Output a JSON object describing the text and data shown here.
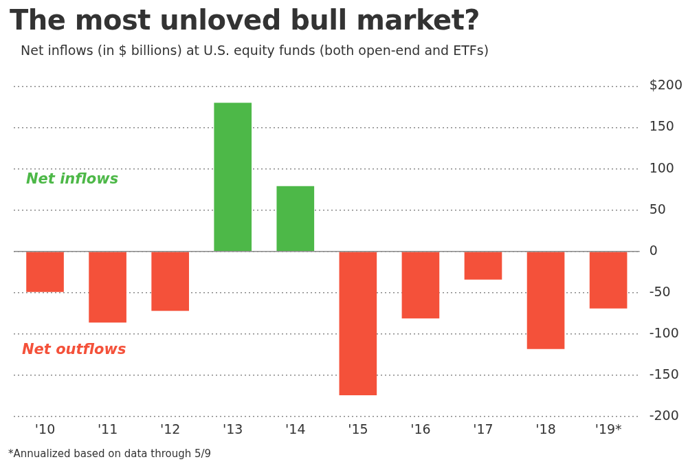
{
  "chart_data": {
    "type": "bar",
    "title": "The most unloved bull market?",
    "subtitle": "Net inflows (in $ billions) at U.S. equity funds (both open-end and ETFs)",
    "categories": [
      "'10",
      "'11",
      "'12",
      "'13",
      "'14",
      "'15",
      "'16",
      "'17",
      "'18",
      "'19*"
    ],
    "values": [
      -49,
      -86,
      -72,
      180,
      79,
      -174,
      -81,
      -34,
      -118,
      -69
    ],
    "colors": [
      "#f4513a",
      "#f4513a",
      "#f4513a",
      "#4db848",
      "#4db848",
      "#f4513a",
      "#f4513a",
      "#f4513a",
      "#f4513a",
      "#f4513a"
    ],
    "ylim": [
      -200,
      200
    ],
    "yticks": [
      {
        "value": 200,
        "label": "$200"
      },
      150,
      100,
      50,
      0,
      -50,
      -100,
      -150,
      -200
    ],
    "grid": "y",
    "annotations": [
      "Net inflows",
      "Net outflows",
      "*Annualized based on data through 5/9"
    ]
  }
}
